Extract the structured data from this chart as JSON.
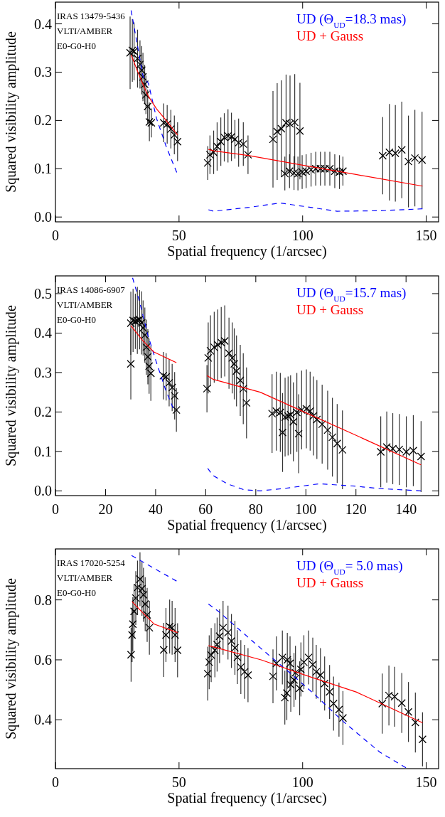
{
  "chart_data": [
    {
      "type": "scatter",
      "xlabel": "Spatial frequency (1/arcsec)",
      "ylabel": "Squared visibility amplitude",
      "xlim": [
        0,
        155
      ],
      "xticks": [
        0,
        50,
        100,
        150
      ],
      "ylim": [
        -0.01,
        0.445
      ],
      "yticks": [
        {
          "value": 0,
          "label": "0.0"
        },
        0.1,
        0.2,
        0.3,
        0.4
      ],
      "legend": "top right",
      "annotations": [
        "IRAS 13479-5436",
        "VLTI/AMBER",
        "E0-G0-H0"
      ],
      "series": [
        {
          "type": "scatter",
          "color": "#000000",
          "marker": "cross",
          "x": [
            30.2,
            31.1,
            31.8,
            33.2,
            34.2,
            34.9,
            35.4,
            36.1,
            36.6,
            37.3,
            38.0,
            38.8,
            43.8,
            45.2,
            46.7,
            48.1,
            49.4,
            61.6,
            62.5,
            64.0,
            65.4,
            66.9,
            68.3,
            69.8,
            71.2,
            72.6,
            74.1,
            76.0,
            77.9,
            88.0,
            89.7,
            91.4,
            93.3,
            94.9,
            96.8,
            98.9,
            92.8,
            94.7,
            96.5,
            98.1,
            99.8,
            101.4,
            103.4,
            105.3,
            107.2,
            109.0,
            111.0,
            113.0,
            114.9,
            116.3,
            132.4,
            135.1,
            137.5,
            140.1,
            142.8,
            145.4,
            148.3
          ],
          "values": [
            0.34,
            0.345,
            0.343,
            0.328,
            0.316,
            0.304,
            0.29,
            0.275,
            0.253,
            0.229,
            0.197,
            0.195,
            0.195,
            0.192,
            0.182,
            0.17,
            0.156,
            0.112,
            0.129,
            0.134,
            0.146,
            0.156,
            0.165,
            0.168,
            0.166,
            0.161,
            0.154,
            0.151,
            0.129,
            0.161,
            0.177,
            0.183,
            0.195,
            0.193,
            0.196,
            0.178,
            0.09,
            0.095,
            0.091,
            0.09,
            0.093,
            0.095,
            0.098,
            0.1,
            0.1,
            0.1,
            0.1,
            0.095,
            0.093,
            0.095,
            0.127,
            0.134,
            0.132,
            0.139,
            0.115,
            0.122,
            0.118
          ],
          "errors": [
            0.075,
            0.065,
            0.06,
            0.06,
            0.05,
            0.05,
            0.05,
            0.04,
            0.04,
            0.035,
            0.04,
            0.03,
            0.04,
            0.04,
            0.04,
            0.04,
            0.04,
            0.035,
            0.04,
            0.045,
            0.05,
            0.05,
            0.05,
            0.055,
            0.05,
            0.04,
            0.05,
            0.045,
            0.04,
            0.1,
            0.1,
            0.1,
            0.1,
            0.1,
            0.1,
            0.1,
            0.035,
            0.035,
            0.035,
            0.035,
            0.035,
            0.035,
            0.035,
            0.035,
            0.035,
            0.035,
            0.035,
            0.035,
            0.035,
            0.03,
            0.08,
            0.1,
            0.1,
            0.1,
            0.095,
            0.1,
            0.1
          ]
        },
        {
          "type": "line",
          "name": "UD (Θ$_{UD}$=18.3 mas)",
          "color": "#0000ff",
          "line_style": "dashed",
          "x": [
            30.6,
            33,
            35.5,
            37.6,
            40.9,
            44.8,
            49.4,
            55,
            61.9,
            64,
            78.4,
            90.9,
            100.5,
            113.9,
            131.2,
            148.5
          ],
          "values": [
            0.428,
            0.36,
            0.29,
            0.277,
            0.204,
            0.146,
            0.088,
            null,
            0.015,
            0.012,
            0.02,
            0.029,
            0.022,
            0.012,
            0.013,
            0.017
          ]
        },
        {
          "type": "line",
          "name": "UD + Gauss",
          "color": "#ff0000",
          "x": [
            30.6,
            33.2,
            35.2,
            37.6,
            40.9,
            44.8,
            49.4,
            55,
            61.9,
            64,
            78.4,
            100.5,
            121.6,
            148.5
          ],
          "values": [
            0.336,
            0.302,
            0.277,
            0.25,
            0.224,
            0.2,
            0.17,
            null,
            0.14,
            0.137,
            0.127,
            0.107,
            0.088,
            0.064
          ]
        }
      ]
    },
    {
      "type": "scatter",
      "xlabel": "Spatial frequency (1/arcsec)",
      "ylabel": "Squared visibility amplitude",
      "xlim": [
        0,
        153
      ],
      "xticks": [
        0,
        20,
        40,
        60,
        80,
        100,
        120,
        140
      ],
      "ylim": [
        -0.012,
        0.545
      ],
      "yticks": [
        {
          "value": 0,
          "label": "0.0"
        },
        0.1,
        0.2,
        0.3,
        0.4,
        0.5
      ],
      "legend": "top right",
      "annotations": [
        "IRAS 14086-6907",
        "VLTI/AMBER",
        "E0-G0-H0"
      ],
      "series": [
        {
          "type": "scatter",
          "color": "#000000",
          "marker": "cross",
          "x": [
            30.1,
            30.1,
            31.0,
            31.9,
            32.7,
            33.6,
            34.4,
            35.0,
            35.7,
            36.3,
            36.9,
            37.4,
            38.1,
            43.1,
            44.2,
            45.4,
            46.6,
            47.6,
            48.3,
            60.5,
            61.0,
            61.9,
            63.4,
            64.8,
            66.2,
            67.6,
            69.3,
            70.6,
            71.4,
            72.3,
            73.8,
            75.0,
            76.3,
            86.5,
            88.2,
            89.8,
            90.7,
            91.7,
            92.9,
            93.9,
            95.0,
            96.4,
            97.1,
            98.3,
            100.2,
            101.7,
            103.0,
            104.4,
            106.5,
            108.7,
            110.6,
            112.5,
            114.6,
            129.9,
            132.3,
            134.7,
            137.3,
            140.1,
            142.9,
            146.0
          ],
          "values": [
            0.322,
            0.425,
            0.432,
            0.43,
            0.432,
            0.434,
            0.426,
            0.413,
            0.395,
            0.364,
            0.34,
            0.316,
            0.298,
            0.292,
            0.289,
            0.274,
            0.262,
            0.241,
            0.205,
            0.259,
            0.337,
            0.355,
            0.364,
            0.37,
            0.376,
            0.38,
            0.349,
            0.337,
            0.322,
            0.304,
            0.28,
            0.259,
            0.223,
            0.196,
            0.202,
            0.199,
            0.148,
            0.187,
            0.19,
            0.193,
            0.175,
            0.199,
            0.145,
            0.205,
            0.208,
            0.202,
            0.19,
            0.181,
            0.169,
            0.154,
            0.136,
            0.12,
            0.104,
            0.099,
            0.111,
            0.107,
            0.105,
            0.099,
            0.102,
            0.087
          ],
          "errors": [
            0.09,
            0.08,
            0.08,
            0.07,
            0.085,
            0.075,
            0.08,
            0.07,
            0.07,
            0.07,
            0.07,
            0.07,
            0.07,
            0.06,
            0.06,
            0.06,
            0.06,
            0.06,
            0.055,
            0.06,
            0.09,
            0.09,
            0.09,
            0.09,
            0.09,
            0.09,
            0.09,
            0.09,
            0.09,
            0.09,
            0.09,
            0.09,
            0.09,
            0.1,
            0.1,
            0.1,
            0.1,
            0.1,
            0.1,
            0.1,
            0.1,
            0.1,
            0.1,
            0.1,
            0.1,
            0.1,
            0.1,
            0.1,
            0.1,
            0.1,
            0.1,
            0.1,
            0.1,
            0.09,
            0.09,
            0.09,
            0.09,
            0.09,
            0.09,
            0.09
          ]
        },
        {
          "type": "line",
          "name": "UD (Θ$_{UD}$=15.7 mas)",
          "color": "#0000ff",
          "line_style": "dashed",
          "x": [
            30.8,
            33.6,
            36.9,
            40.2,
            44.0,
            47.6,
            54,
            60.8,
            62.9,
            68.6,
            75.2,
            81.8,
            91.2,
            105.4,
            119.6,
            129.0,
            146.0
          ],
          "values": [
            0.54,
            0.479,
            0.395,
            0.328,
            0.256,
            0.2,
            null,
            0.057,
            0.039,
            0.018,
            0.003,
            0.0,
            0.006,
            0.018,
            0.012,
            0.006,
            0.0
          ]
        },
        {
          "type": "line",
          "name": "UD + Gauss",
          "color": "#ff0000",
          "x": [
            30.1,
            34.6,
            39.3,
            48.3,
            54,
            60.5,
            62.9,
            81.8,
            100.7,
            119.6,
            146.0
          ],
          "values": [
            0.419,
            0.383,
            0.352,
            0.325,
            null,
            0.292,
            0.283,
            0.25,
            0.196,
            0.142,
            0.066
          ]
        }
      ]
    },
    {
      "type": "scatter",
      "xlabel": "Spatial frequency (1/arcsec)",
      "ylabel": "Squared visibility amplitude",
      "xlim": [
        0,
        155
      ],
      "xticks": [
        0,
        50,
        100,
        150
      ],
      "ylim": [
        0.237,
        0.97
      ],
      "yticks": [
        0.4,
        0.6,
        0.8
      ],
      "legend": "top right",
      "annotations": [
        "IRAS 17020-5254",
        "VLTI/AMBER",
        "E0-G0-H0"
      ],
      "series": [
        {
          "type": "scatter",
          "color": "#000000",
          "marker": "cross",
          "x": [
            30.6,
            31.0,
            31.3,
            31.8,
            32.5,
            33.2,
            34.2,
            35.0,
            35.6,
            36.3,
            37.1,
            38.0,
            43.8,
            44.7,
            46.2,
            47.2,
            48.4,
            49.4,
            61.6,
            62.2,
            63.0,
            64.5,
            65.4,
            66.4,
            67.8,
            69.8,
            71.2,
            72.6,
            73.6,
            75.0,
            76.5,
            77.9,
            88.0,
            89.4,
            91.8,
            92.8,
            93.6,
            93.8,
            94.9,
            95.2,
            96.5,
            97.1,
            98.8,
            99.3,
            100.5,
            102.4,
            104.1,
            105.5,
            107.2,
            108.9,
            110.9,
            112.5,
            114.7,
            116.3,
            132.2,
            134.9,
            137.2,
            140.1,
            142.8,
            145.6,
            148.5
          ],
          "values": [
            0.617,
            0.683,
            0.719,
            0.762,
            0.806,
            0.841,
            0.869,
            0.837,
            0.817,
            0.786,
            0.75,
            0.707,
            0.633,
            0.683,
            0.711,
            0.707,
            0.683,
            0.632,
            0.554,
            0.592,
            0.616,
            0.632,
            0.651,
            0.679,
            0.707,
            0.691,
            0.663,
            0.64,
            0.609,
            0.576,
            0.56,
            0.549,
            0.545,
            0.588,
            0.608,
            0.474,
            0.489,
            0.6,
            0.588,
            0.517,
            0.533,
            0.557,
            0.505,
            0.568,
            0.592,
            0.608,
            0.584,
            0.56,
            0.549,
            0.521,
            0.493,
            0.454,
            0.434,
            0.406,
            0.454,
            0.481,
            0.477,
            0.456,
            0.426,
            0.391,
            0.335
          ],
          "errors": [
            0.09,
            0.09,
            0.09,
            0.09,
            0.09,
            0.09,
            0.09,
            0.09,
            0.09,
            0.09,
            0.09,
            0.09,
            0.09,
            0.09,
            0.09,
            0.09,
            0.09,
            0.09,
            0.09,
            0.09,
            0.09,
            0.09,
            0.09,
            0.09,
            0.09,
            0.09,
            0.09,
            0.09,
            0.09,
            0.09,
            0.09,
            0.09,
            0.09,
            0.09,
            0.09,
            0.09,
            0.09,
            0.09,
            0.09,
            0.09,
            0.09,
            0.09,
            0.09,
            0.09,
            0.09,
            0.09,
            0.09,
            0.09,
            0.09,
            0.09,
            0.09,
            0.09,
            0.09,
            0.09,
            0.1,
            0.1,
            0.1,
            0.1,
            0.1,
            0.1,
            0.09
          ]
        },
        {
          "type": "line",
          "name": "UD (Θ$_{UD}$= 5.0 mas)",
          "color": "#0000ff",
          "line_style": "dashed",
          "x": [
            30.8,
            49.4,
            55,
            61.9,
            65.9,
            81.3,
            88.0,
            96.5,
            105.3,
            115.9,
            131.2,
            141.8
          ],
          "values": [
            0.948,
            0.861,
            null,
            0.786,
            0.762,
            0.651,
            0.604,
            0.545,
            0.481,
            0.398,
            0.292,
            0.24
          ]
        },
        {
          "type": "line",
          "name": "UD + Gauss",
          "color": "#ff0000",
          "x": [
            31.0,
            35.2,
            40.0,
            49.4,
            55,
            61.9,
            64,
            83.2,
            102.4,
            121.6,
            148.5
          ],
          "values": [
            0.794,
            0.758,
            0.719,
            0.691,
            null,
            0.647,
            0.643,
            0.6,
            0.545,
            0.493,
            0.39
          ]
        }
      ]
    }
  ]
}
